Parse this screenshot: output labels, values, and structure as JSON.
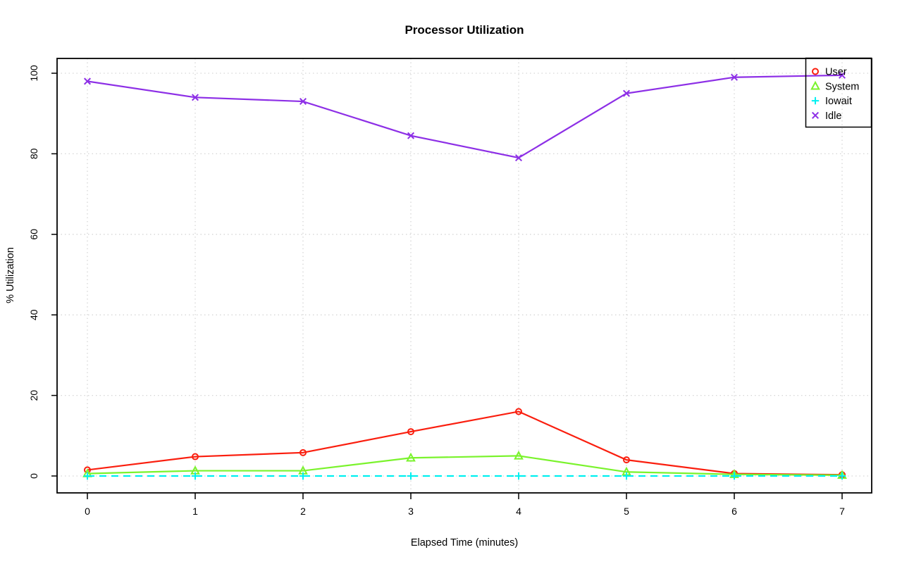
{
  "chart_data": {
    "type": "line",
    "title": "Processor Utilization",
    "xlabel": "Elapsed Time (minutes)",
    "ylabel": "% Utilization",
    "x": [
      0,
      1,
      2,
      3,
      4,
      5,
      6,
      7
    ],
    "x_ticks": [
      "0",
      "1",
      "2",
      "3",
      "4",
      "5",
      "6",
      "7"
    ],
    "y_ticks": [
      "0",
      "20",
      "40",
      "60",
      "80",
      "100"
    ],
    "y_tick_values": [
      0,
      20,
      40,
      60,
      80,
      100
    ],
    "xlim": [
      0,
      7
    ],
    "ylim": [
      0,
      100
    ],
    "grid": true,
    "grid_color": "#d6d6d6",
    "background_color": "#ffffff",
    "axis_color": "#000000",
    "legend_position": "top-right",
    "legend_transparent": true,
    "series": [
      {
        "name": "User",
        "color": "#fa1e0e",
        "marker": "circle",
        "linestyle": "solid",
        "values": [
          1.5,
          4.8,
          5.8,
          11,
          16,
          4,
          0.6,
          0.3
        ]
      },
      {
        "name": "System",
        "color": "#7af32c",
        "marker": "triangle",
        "linestyle": "solid",
        "values": [
          0.6,
          1.3,
          1.3,
          4.5,
          5,
          1,
          0.4,
          0.2
        ]
      },
      {
        "name": "Iowait",
        "color": "#00f0f0",
        "marker": "plus",
        "linestyle": "dashed",
        "values": [
          0,
          0,
          0,
          0,
          0,
          0,
          0,
          0
        ]
      },
      {
        "name": "Idle",
        "color": "#8d2fe6",
        "marker": "x",
        "linestyle": "solid",
        "values": [
          98,
          94,
          93,
          84.5,
          79,
          95,
          99,
          99.5
        ]
      }
    ]
  }
}
